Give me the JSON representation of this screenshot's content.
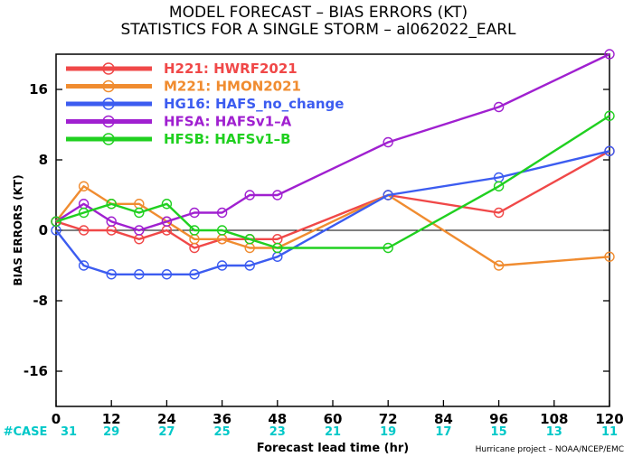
{
  "title_line1": "MODEL FORECAST – BIAS ERRORS (KT)",
  "title_line2": "STATISTICS FOR A SINGLE STORM – al062022_EARL",
  "case_label": "#CASE",
  "case_counts": [
    "31",
    "29",
    "27",
    "25",
    "23",
    "21",
    "19",
    "17",
    "15",
    "13",
    "11"
  ],
  "credit": "Hurricane project – NOAA/NCEP/EMC",
  "chart_data": {
    "type": "line",
    "title": "MODEL FORECAST – BIAS ERRORS (KT)",
    "subtitle": "STATISTICS FOR A SINGLE STORM – al062022_EARL",
    "xlabel": "Forecast lead time (hr)",
    "ylabel": "BIAS ERRORS (KT)",
    "xlim": [
      0,
      120
    ],
    "ylim": [
      -20,
      20
    ],
    "xticks": [
      0,
      12,
      24,
      36,
      48,
      60,
      72,
      84,
      96,
      108,
      120
    ],
    "yticks": [
      -16,
      -8,
      0,
      8,
      16
    ],
    "legend_position": "top-left",
    "grid": false,
    "series": [
      {
        "name": "H221: HWRF2021",
        "color": "#f04848",
        "x": [
          0,
          6,
          12,
          18,
          24,
          30,
          36,
          42,
          48,
          72,
          96,
          120
        ],
        "values": [
          1,
          0,
          0,
          -1,
          0,
          -2,
          -1,
          -1,
          -1,
          4,
          2,
          9
        ]
      },
      {
        "name": "M221: HMON2021",
        "color": "#f08c30",
        "x": [
          0,
          6,
          12,
          18,
          24,
          30,
          36,
          42,
          48,
          72,
          96,
          120
        ],
        "values": [
          1,
          5,
          3,
          3,
          1,
          -1,
          -1,
          -2,
          -2,
          4,
          -4,
          -3
        ]
      },
      {
        "name": "HG16: HAFS_no_change",
        "color": "#3c5cf0",
        "x": [
          0,
          6,
          12,
          18,
          24,
          30,
          36,
          42,
          48,
          72,
          96,
          120
        ],
        "values": [
          0,
          -4,
          -5,
          -5,
          -5,
          -5,
          -4,
          -4,
          -3,
          4,
          6,
          9
        ]
      },
      {
        "name": "HFSA: HAFSv1–A",
        "color": "#a020d0",
        "x": [
          0,
          6,
          12,
          18,
          24,
          30,
          36,
          42,
          48,
          72,
          96,
          120
        ],
        "values": [
          1,
          3,
          1,
          0,
          1,
          2,
          2,
          4,
          4,
          10,
          14,
          20
        ]
      },
      {
        "name": "HFSB: HAFSv1–B",
        "color": "#20d020",
        "x": [
          0,
          6,
          12,
          18,
          24,
          30,
          36,
          42,
          48,
          72,
          96,
          120
        ],
        "values": [
          1,
          2,
          3,
          2,
          3,
          0,
          0,
          -1,
          -2,
          -2,
          5,
          13
        ]
      }
    ]
  }
}
